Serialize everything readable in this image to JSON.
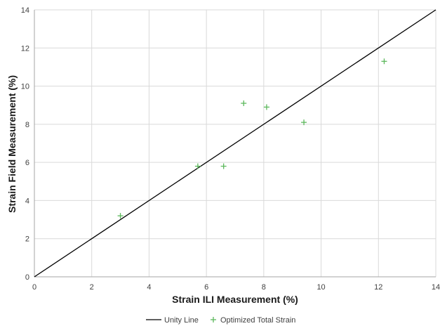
{
  "chart_data": {
    "type": "scatter",
    "xlabel": "Strain ILI Measurement (%)",
    "ylabel": "Strain Field Measurement (%)",
    "xlim": [
      0,
      14
    ],
    "ylim": [
      0,
      14
    ],
    "x_ticks": [
      0,
      2,
      4,
      6,
      8,
      10,
      12,
      14
    ],
    "y_ticks": [
      0,
      2,
      4,
      6,
      8,
      10,
      12,
      14
    ],
    "grid": true,
    "legend_position": "bottom",
    "series": [
      {
        "name": "Unity Line",
        "kind": "line",
        "color": "#000000",
        "x": [
          0,
          14
        ],
        "y": [
          0,
          14
        ]
      },
      {
        "name": "Optimized Total Strain",
        "kind": "scatter",
        "marker": "plus",
        "color": "#5cb85c",
        "x": [
          3.0,
          5.7,
          6.6,
          7.3,
          8.1,
          9.4,
          12.2
        ],
        "y": [
          3.2,
          5.8,
          5.8,
          9.1,
          8.9,
          8.1,
          11.3
        ]
      }
    ]
  }
}
